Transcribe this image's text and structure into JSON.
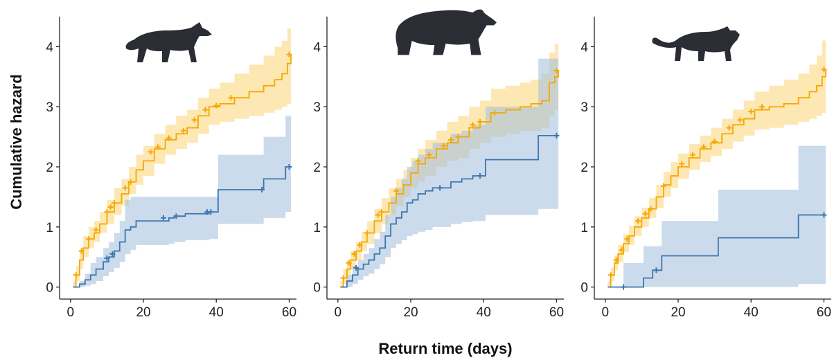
{
  "figure": {
    "ylabel": "Cumulative hazard",
    "xlabel": "Return time (days)",
    "colors": {
      "orange": "#F5A800",
      "orange_band": "#FDE3A6",
      "blue": "#3C76B0",
      "blue_band": "#A9C3DE",
      "silhouette": "#2A2D33"
    }
  },
  "chart_data": [
    {
      "type": "line",
      "panel_icon": "thylacine-silhouette-icon",
      "xlim": [
        -3,
        62
      ],
      "ylim": [
        -0.2,
        4.5
      ],
      "xticks": [
        0,
        20,
        40,
        60
      ],
      "yticks": [
        0,
        1,
        2,
        3,
        4
      ],
      "series": [
        {
          "color": "orange",
          "x": [
            0.7,
            1.5,
            2.5,
            3.5,
            5,
            6.5,
            8,
            10,
            12,
            14,
            16,
            18,
            20,
            23,
            26,
            29,
            32,
            35,
            38,
            41,
            45,
            49,
            53,
            56,
            58,
            59.5,
            60.5
          ],
          "y": [
            0,
            0.2,
            0.45,
            0.65,
            0.8,
            0.9,
            1.05,
            1.25,
            1.4,
            1.55,
            1.75,
            1.95,
            2.1,
            2.3,
            2.45,
            2.55,
            2.65,
            2.85,
            3.0,
            3.05,
            3.15,
            3.25,
            3.35,
            3.45,
            3.55,
            3.72,
            3.87
          ],
          "band_lo": [
            0,
            0.1,
            0.3,
            0.5,
            0.65,
            0.75,
            0.9,
            1.05,
            1.2,
            1.35,
            1.55,
            1.7,
            1.85,
            2.05,
            2.2,
            2.3,
            2.4,
            2.55,
            2.7,
            2.75,
            2.8,
            2.85,
            2.9,
            2.95,
            3.0,
            3.05,
            3.1
          ],
          "band_hi": [
            0.1,
            0.35,
            0.6,
            0.85,
            1.0,
            1.1,
            1.25,
            1.45,
            1.65,
            1.8,
            2.0,
            2.2,
            2.35,
            2.55,
            2.7,
            2.85,
            2.95,
            3.15,
            3.3,
            3.4,
            3.55,
            3.7,
            3.85,
            4.0,
            4.1,
            4.3,
            4.5
          ],
          "censor": [
            [
              1.5,
              0.2
            ],
            [
              3,
              0.6
            ],
            [
              5,
              0.8
            ],
            [
              7,
              0.95
            ],
            [
              10,
              1.25
            ],
            [
              11,
              1.33
            ],
            [
              12,
              1.4
            ],
            [
              15,
              1.65
            ],
            [
              16.5,
              1.75
            ],
            [
              22,
              2.25
            ],
            [
              24,
              2.33
            ],
            [
              27,
              2.48
            ],
            [
              31,
              2.6
            ],
            [
              34,
              2.78
            ],
            [
              37,
              2.95
            ],
            [
              40,
              3.02
            ],
            [
              44,
              3.15
            ],
            [
              60,
              3.87
            ]
          ]
        },
        {
          "color": "blue",
          "x": [
            0.7,
            2.5,
            4,
            5.5,
            7,
            9,
            10.5,
            12,
            13.5,
            15,
            16.5,
            18,
            27,
            28.5,
            31.5,
            38,
            40.5,
            51,
            53,
            59,
            60.5
          ],
          "y": [
            0,
            0.05,
            0.12,
            0.2,
            0.3,
            0.42,
            0.5,
            0.6,
            0.75,
            0.95,
            1.0,
            1.1,
            1.15,
            1.18,
            1.22,
            1.25,
            1.62,
            1.62,
            1.8,
            2.0,
            2.0
          ],
          "band_lo": [
            0,
            0,
            0.02,
            0.05,
            0.1,
            0.18,
            0.25,
            0.32,
            0.42,
            0.55,
            0.62,
            0.7,
            0.72,
            0.75,
            0.78,
            0.8,
            1.05,
            1.05,
            1.15,
            1.25,
            1.25
          ],
          "band_hi": [
            0,
            0.1,
            0.22,
            0.4,
            0.5,
            0.65,
            0.75,
            0.9,
            1.1,
            1.45,
            1.5,
            1.5,
            1.5,
            1.5,
            1.5,
            1.5,
            2.2,
            2.2,
            2.5,
            2.85,
            2.85
          ],
          "censor": [
            [
              10,
              0.48
            ],
            [
              11.5,
              0.55
            ],
            [
              25.5,
              1.15
            ],
            [
              29,
              1.18
            ],
            [
              37.5,
              1.25
            ],
            [
              38.5,
              1.25
            ],
            [
              52.5,
              1.62
            ],
            [
              60,
              2.0
            ]
          ]
        }
      ]
    },
    {
      "type": "line",
      "panel_icon": "bear-silhouette-icon",
      "xlim": [
        -3,
        62
      ],
      "ylim": [
        -0.2,
        4.5
      ],
      "xticks": [
        0,
        20,
        40,
        60
      ],
      "yticks": [
        0,
        1,
        2,
        3,
        4
      ],
      "series": [
        {
          "color": "orange",
          "x": [
            0.7,
            1.5,
            2.5,
            3.5,
            5,
            6.5,
            8,
            10,
            12,
            14,
            16,
            18,
            20,
            22,
            24,
            27,
            30,
            33,
            36,
            39,
            42,
            46,
            50,
            53,
            56,
            58,
            59.5,
            60.5
          ],
          "y": [
            0,
            0.15,
            0.3,
            0.45,
            0.6,
            0.75,
            0.9,
            1.1,
            1.25,
            1.4,
            1.55,
            1.7,
            1.9,
            2.05,
            2.15,
            2.3,
            2.4,
            2.5,
            2.65,
            2.75,
            2.9,
            2.95,
            3.0,
            3.05,
            3.1,
            3.4,
            3.5,
            3.6
          ],
          "band_lo": [
            0,
            0.05,
            0.18,
            0.3,
            0.45,
            0.6,
            0.72,
            0.9,
            1.05,
            1.2,
            1.35,
            1.5,
            1.65,
            1.75,
            1.85,
            2.0,
            2.1,
            2.15,
            2.3,
            2.4,
            2.5,
            2.55,
            2.6,
            2.6,
            2.65,
            2.85,
            2.95,
            3.0
          ],
          "band_hi": [
            0.1,
            0.3,
            0.45,
            0.6,
            0.75,
            0.92,
            1.1,
            1.3,
            1.48,
            1.65,
            1.8,
            1.95,
            2.15,
            2.3,
            2.45,
            2.6,
            2.75,
            2.85,
            3.0,
            3.1,
            3.3,
            3.35,
            3.4,
            3.45,
            3.55,
            3.9,
            4.05,
            4.2
          ],
          "censor": [
            [
              1.5,
              0.15
            ],
            [
              3,
              0.4
            ],
            [
              4.5,
              0.55
            ],
            [
              6,
              0.7
            ],
            [
              8,
              0.9
            ],
            [
              11,
              1.2
            ],
            [
              12,
              1.25
            ],
            [
              16,
              1.6
            ],
            [
              22,
              2.1
            ],
            [
              25,
              2.2
            ],
            [
              29,
              2.35
            ],
            [
              31,
              2.45
            ],
            [
              33,
              2.5
            ],
            [
              37,
              2.7
            ],
            [
              39,
              2.75
            ],
            [
              43,
              2.9
            ],
            [
              60,
              3.6
            ]
          ]
        },
        {
          "color": "blue",
          "x": [
            0.7,
            2.5,
            4,
            5.5,
            7,
            8.5,
            10,
            11.5,
            13,
            14.5,
            16,
            17.5,
            19,
            20.5,
            22,
            24,
            26,
            28,
            31,
            34,
            37,
            40.5,
            53,
            55,
            60.5
          ],
          "y": [
            0,
            0.1,
            0.2,
            0.3,
            0.38,
            0.45,
            0.55,
            0.65,
            0.85,
            1.05,
            1.15,
            1.25,
            1.4,
            1.45,
            1.55,
            1.6,
            1.65,
            1.65,
            1.75,
            1.8,
            1.85,
            2.12,
            2.12,
            2.52,
            2.52
          ],
          "band_lo": [
            0,
            0,
            0.05,
            0.12,
            0.18,
            0.22,
            0.3,
            0.38,
            0.5,
            0.65,
            0.72,
            0.78,
            0.85,
            0.88,
            0.92,
            0.95,
            1.0,
            1.0,
            1.05,
            1.08,
            1.1,
            1.2,
            1.2,
            1.3,
            1.3
          ],
          "band_hi": [
            0,
            0.2,
            0.35,
            0.45,
            0.55,
            0.65,
            0.8,
            0.92,
            1.2,
            1.5,
            1.65,
            1.8,
            2.0,
            2.1,
            2.2,
            2.3,
            2.4,
            2.4,
            2.55,
            2.6,
            2.7,
            3.0,
            3.0,
            3.8,
            3.8
          ],
          "censor": [
            [
              5,
              0.32
            ],
            [
              28,
              1.65
            ],
            [
              39,
              1.85
            ],
            [
              60,
              2.52
            ]
          ]
        }
      ]
    },
    {
      "type": "line",
      "panel_icon": "cat-silhouette-icon",
      "xlim": [
        -3,
        62
      ],
      "ylim": [
        -0.2,
        4.5
      ],
      "xticks": [
        0,
        20,
        40,
        60
      ],
      "yticks": [
        0,
        1,
        2,
        3,
        4
      ],
      "series": [
        {
          "color": "orange",
          "x": [
            0.7,
            1.5,
            2.5,
            3.5,
            5,
            6.5,
            8,
            10,
            12,
            14,
            16,
            18,
            20,
            23,
            26,
            29,
            32,
            35,
            38,
            41,
            45,
            49,
            53,
            56,
            58,
            59.5,
            60.5
          ],
          "y": [
            0,
            0.2,
            0.4,
            0.55,
            0.72,
            0.85,
            1.0,
            1.15,
            1.3,
            1.5,
            1.7,
            1.85,
            2.0,
            2.15,
            2.3,
            2.4,
            2.55,
            2.7,
            2.8,
            2.95,
            3.0,
            3.05,
            3.15,
            3.25,
            3.35,
            3.5,
            3.62
          ],
          "band_lo": [
            0,
            0.1,
            0.28,
            0.42,
            0.58,
            0.7,
            0.85,
            1.0,
            1.15,
            1.32,
            1.5,
            1.65,
            1.8,
            1.95,
            2.08,
            2.18,
            2.3,
            2.42,
            2.52,
            2.62,
            2.65,
            2.7,
            2.75,
            2.8,
            2.85,
            2.9,
            2.95
          ],
          "band_hi": [
            0.1,
            0.32,
            0.52,
            0.7,
            0.88,
            1.02,
            1.18,
            1.32,
            1.48,
            1.7,
            1.92,
            2.08,
            2.22,
            2.38,
            2.52,
            2.65,
            2.8,
            2.95,
            3.1,
            3.25,
            3.35,
            3.45,
            3.55,
            3.7,
            3.85,
            4.1,
            4.3
          ],
          "censor": [
            [
              1.5,
              0.2
            ],
            [
              3,
              0.45
            ],
            [
              4.5,
              0.62
            ],
            [
              6,
              0.8
            ],
            [
              9,
              1.1
            ],
            [
              11,
              1.22
            ],
            [
              12.5,
              1.3
            ],
            [
              16,
              1.68
            ],
            [
              21,
              2.05
            ],
            [
              24,
              2.2
            ],
            [
              27,
              2.33
            ],
            [
              30,
              2.42
            ],
            [
              34,
              2.65
            ],
            [
              37,
              2.78
            ],
            [
              40,
              2.92
            ],
            [
              43,
              3.0
            ],
            [
              60,
              3.62
            ]
          ]
        },
        {
          "color": "blue",
          "x": [
            0.7,
            5,
            10.5,
            13,
            15.5,
            31,
            53,
            60.5
          ],
          "y": [
            0,
            0,
            0.15,
            0.28,
            0.52,
            0.82,
            1.2,
            1.2
          ],
          "band_lo": [
            0,
            0,
            0,
            0,
            0,
            0,
            0.05,
            0.05
          ],
          "band_hi": [
            0,
            0.4,
            0.68,
            0.68,
            1.1,
            1.62,
            2.35,
            2.35
          ],
          "censor": [
            [
              5,
              0
            ],
            [
              14,
              0.28
            ],
            [
              60,
              1.2
            ]
          ]
        }
      ]
    }
  ]
}
